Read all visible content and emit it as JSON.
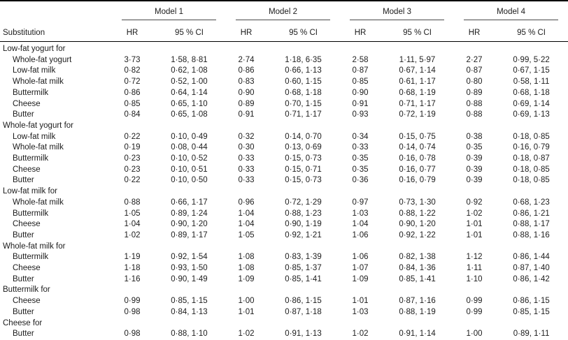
{
  "table": {
    "col1_header": "Substitution",
    "models": [
      "Model 1",
      "Model 2",
      "Model 3",
      "Model 4"
    ],
    "subheaders": {
      "hr": "HR",
      "ci": "95 % CI"
    },
    "sections": [
      {
        "label": "Low-fat yogurt for",
        "rows": [
          {
            "label": "Whole-fat yogurt",
            "cells": [
              "3·73",
              "1·58, 8·81",
              "2·74",
              "1·18, 6·35",
              "2·58",
              "1·11, 5·97",
              "2·27",
              "0·99, 5·22"
            ]
          },
          {
            "label": "Low-fat milk",
            "cells": [
              "0·82",
              "0·62, 1·08",
              "0·86",
              "0·66, 1·13",
              "0·87",
              "0·67, 1·14",
              "0·87",
              "0·67, 1·15"
            ]
          },
          {
            "label": "Whole-fat milk",
            "cells": [
              "0·72",
              "0·52, 1·00",
              "0·83",
              "0·60, 1·15",
              "0·85",
              "0·61, 1·17",
              "0·80",
              "0·58, 1·11"
            ]
          },
          {
            "label": "Buttermilk",
            "cells": [
              "0·86",
              "0·64, 1·14",
              "0·90",
              "0·68, 1·18",
              "0·90",
              "0·68, 1·19",
              "0·89",
              "0·68, 1·18"
            ]
          },
          {
            "label": "Cheese",
            "cells": [
              "0·85",
              "0·65, 1·10",
              "0·89",
              "0·70, 1·15",
              "0·91",
              "0·71, 1·17",
              "0·88",
              "0·69, 1·14"
            ]
          },
          {
            "label": "Butter",
            "cells": [
              "0·84",
              "0·65, 1·08",
              "0·91",
              "0·71, 1·17",
              "0·93",
              "0·72, 1·19",
              "0·88",
              "0·69, 1·13"
            ]
          }
        ]
      },
      {
        "label": "Whole-fat yogurt for",
        "rows": [
          {
            "label": "Low-fat milk",
            "cells": [
              "0·22",
              "0·10, 0·49",
              "0·32",
              "0·14, 0·70",
              "0·34",
              "0·15, 0·75",
              "0·38",
              "0·18, 0·85"
            ]
          },
          {
            "label": "Whole-fat milk",
            "cells": [
              "0·19",
              "0·08, 0·44",
              "0·30",
              "0·13, 0·69",
              "0·33",
              "0·14, 0·74",
              "0·35",
              "0·16, 0·79"
            ]
          },
          {
            "label": "Buttermilk",
            "cells": [
              "0·23",
              "0·10, 0·52",
              "0·33",
              "0·15, 0·73",
              "0·35",
              "0·16, 0·78",
              "0·39",
              "0·18, 0·87"
            ]
          },
          {
            "label": "Cheese",
            "cells": [
              "0·23",
              "0·10, 0·51",
              "0·33",
              "0·15, 0·71",
              "0·35",
              "0·16, 0·77",
              "0·39",
              "0·18, 0·85"
            ]
          },
          {
            "label": "Butter",
            "cells": [
              "0·22",
              "0·10, 0·50",
              "0·33",
              "0·15, 0·73",
              "0·36",
              "0·16, 0·79",
              "0·39",
              "0·18, 0·85"
            ]
          }
        ]
      },
      {
        "label": "Low-fat milk for",
        "rows": [
          {
            "label": "Whole-fat milk",
            "cells": [
              "0·88",
              "0·66, 1·17",
              "0·96",
              "0·72, 1·29",
              "0·97",
              "0·73, 1·30",
              "0·92",
              "0·68, 1·23"
            ]
          },
          {
            "label": "Buttermilk",
            "cells": [
              "1·05",
              "0·89, 1·24",
              "1·04",
              "0·88, 1·23",
              "1·03",
              "0·88, 1·22",
              "1·02",
              "0·86, 1·21"
            ]
          },
          {
            "label": "Cheese",
            "cells": [
              "1·04",
              "0·90, 1·20",
              "1·04",
              "0·90, 1·19",
              "1·04",
              "0·90, 1·20",
              "1·01",
              "0·88, 1·17"
            ]
          },
          {
            "label": "Butter",
            "cells": [
              "1·02",
              "0·89, 1·17",
              "1·05",
              "0·92, 1·21",
              "1·06",
              "0·92, 1·22",
              "1·01",
              "0·88, 1·16"
            ]
          }
        ]
      },
      {
        "label": "Whole-fat milk for",
        "rows": [
          {
            "label": "Buttermilk",
            "cells": [
              "1·19",
              "0·92, 1·54",
              "1·08",
              "0·83, 1·39",
              "1·06",
              "0·82, 1·38",
              "1·12",
              "0·86, 1·44"
            ]
          },
          {
            "label": "Cheese",
            "cells": [
              "1·18",
              "0·93, 1·50",
              "1·08",
              "0·85, 1·37",
              "1·07",
              "0·84, 1·36",
              "1·11",
              "0·87, 1·40"
            ]
          },
          {
            "label": "Butter",
            "cells": [
              "1·16",
              "0·90, 1·49",
              "1·09",
              "0·85, 1·41",
              "1·09",
              "0·85, 1·41",
              "1·10",
              "0·86, 1·42"
            ]
          }
        ]
      },
      {
        "label": "Buttermilk for",
        "rows": [
          {
            "label": "Cheese",
            "cells": [
              "0·99",
              "0·85, 1·15",
              "1·00",
              "0·86, 1·15",
              "1·01",
              "0·87, 1·16",
              "0·99",
              "0·86, 1·15"
            ]
          },
          {
            "label": "Butter",
            "cells": [
              "0·98",
              "0·84, 1·13",
              "1·01",
              "0·87, 1·18",
              "1·03",
              "0·88, 1·19",
              "0·99",
              "0·85, 1·15"
            ]
          }
        ]
      },
      {
        "label": "Cheese for",
        "rows": [
          {
            "label": "Butter",
            "cells": [
              "0·98",
              "0·88, 1·10",
              "1·02",
              "0·91, 1·13",
              "1·02",
              "0·91, 1·14",
              "1·00",
              "0·89, 1·11"
            ]
          }
        ]
      }
    ]
  }
}
